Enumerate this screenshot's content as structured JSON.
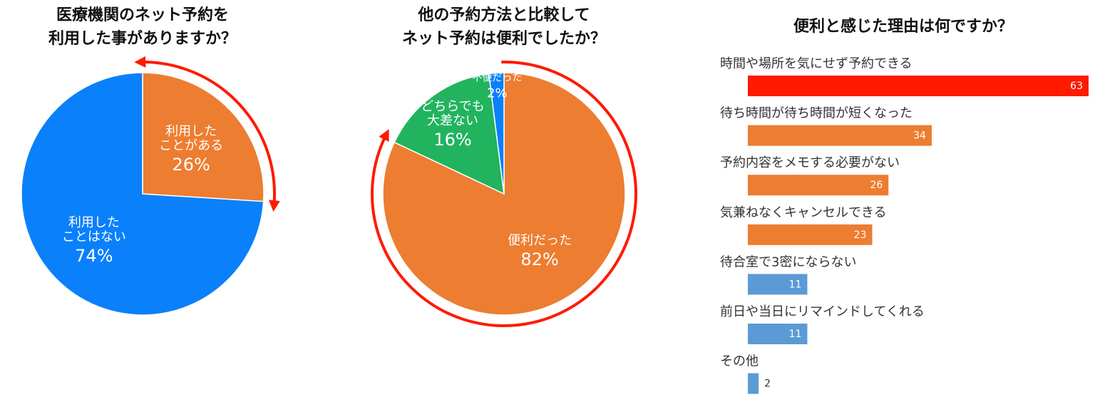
{
  "chart_data": [
    {
      "type": "pie",
      "title": [
        "医療機関のネット予約を",
        "利用した事がありますか？"
      ],
      "categories": [
        [
          "利用した",
          "ことがある"
        ],
        [
          "利用した",
          "ことはない"
        ]
      ],
      "values": [
        26,
        74
      ],
      "value_labels": [
        "26%",
        "74%"
      ],
      "colors": [
        "#ed7d31",
        "#0a80fa"
      ]
    },
    {
      "type": "pie",
      "title": [
        "他の予約方法と比較して",
        "ネット予約は便利でしたか？"
      ],
      "categories": [
        [
          "便利だった"
        ],
        [
          "どちらでも",
          "大差ない"
        ],
        [
          "不便だった"
        ]
      ],
      "values": [
        82,
        16,
        2
      ],
      "value_labels": [
        "82%",
        "16%",
        "2%"
      ],
      "colors": [
        "#ed7d31",
        "#22b35f",
        "#0a80fa"
      ]
    },
    {
      "type": "bar",
      "title": [
        "便利と感じた理由は何ですか？"
      ],
      "categories": [
        "時間や場所を気にせず予約できる",
        "待ち時間が待ち時間が短くなった",
        "予約内容をメモする必要がない",
        "気兼ねなくキャンセルできる",
        "待合室で3密にならない",
        "前日や当日にリマインドしてくれる",
        "その他"
      ],
      "values": [
        63,
        34,
        26,
        23,
        11,
        11,
        2
      ],
      "colors": [
        "#ff1a00",
        "#ed7d31",
        "#ed7d31",
        "#ed7d31",
        "#5b9bd5",
        "#5b9bd5",
        "#5b9bd5"
      ]
    }
  ]
}
